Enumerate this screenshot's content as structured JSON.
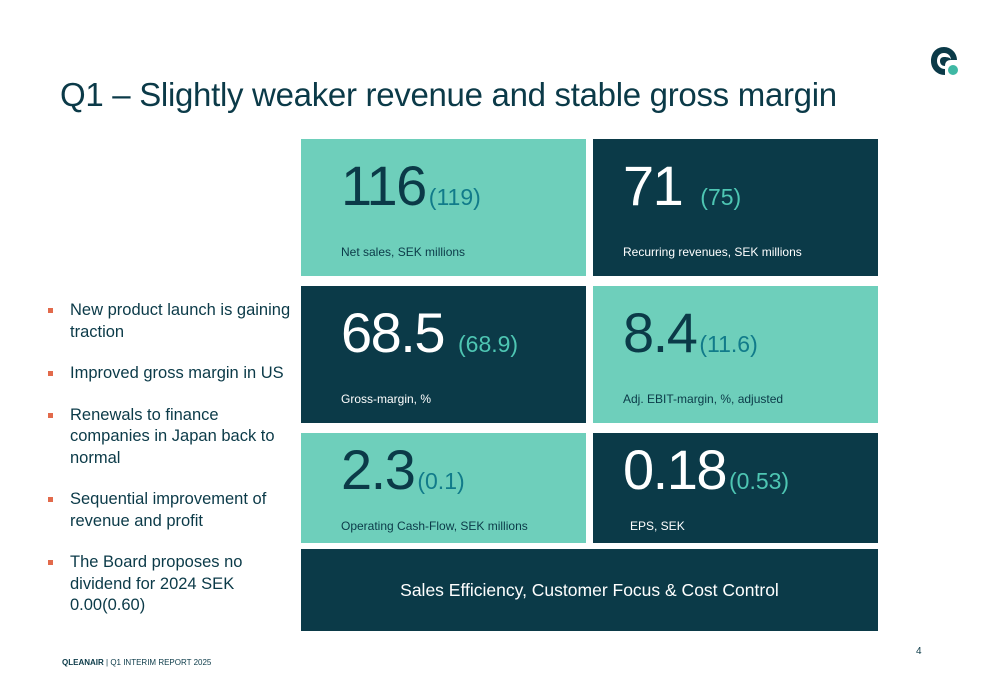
{
  "slide": {
    "title": "Q1 – Slightly weaker revenue and stable gross margin",
    "page_number": "4"
  },
  "bullets": [
    "New product launch is gaining traction",
    "Improved gross margin in US",
    "Renewals to finance companies in Japan back to normal",
    "Sequential improvement of revenue and profit",
    "The Board proposes no dividend for 2024 SEK 0.00(0.60)"
  ],
  "kpis": [
    {
      "value": "116",
      "previous": "(119)",
      "label": "Net sales, SEK millions",
      "color": "#6ecfbb"
    },
    {
      "value": "71",
      "previous": "(75)",
      "label": "Recurring revenues, SEK millions",
      "color": "#0b3a48"
    },
    {
      "value": "68.5",
      "previous": "(68.9)",
      "label": "Gross-margin, %",
      "color": "#0b3a48"
    },
    {
      "value": "8.4",
      "previous": "(11.6)",
      "label": "Adj. EBIT-margin, %, adjusted",
      "color": "#6ecfbb"
    },
    {
      "value": "2.3",
      "previous": "(0.1)",
      "label": "Operating Cash-Flow, SEK millions",
      "color": "#6ecfbb"
    },
    {
      "value": "0.18",
      "previous": "(0.53)",
      "label": "EPS, SEK",
      "color": "#0b3a48"
    }
  ],
  "banner": {
    "text": "Sales Efficiency, Customer Focus & Cost Control"
  },
  "footer": {
    "brand": "QLEANAIR",
    "separator": " | ",
    "report": "Q1 INTERIM REPORT 2025"
  },
  "icons": {
    "logo": "qleanair-logo-icon",
    "bullet": "square-bullet-icon"
  }
}
